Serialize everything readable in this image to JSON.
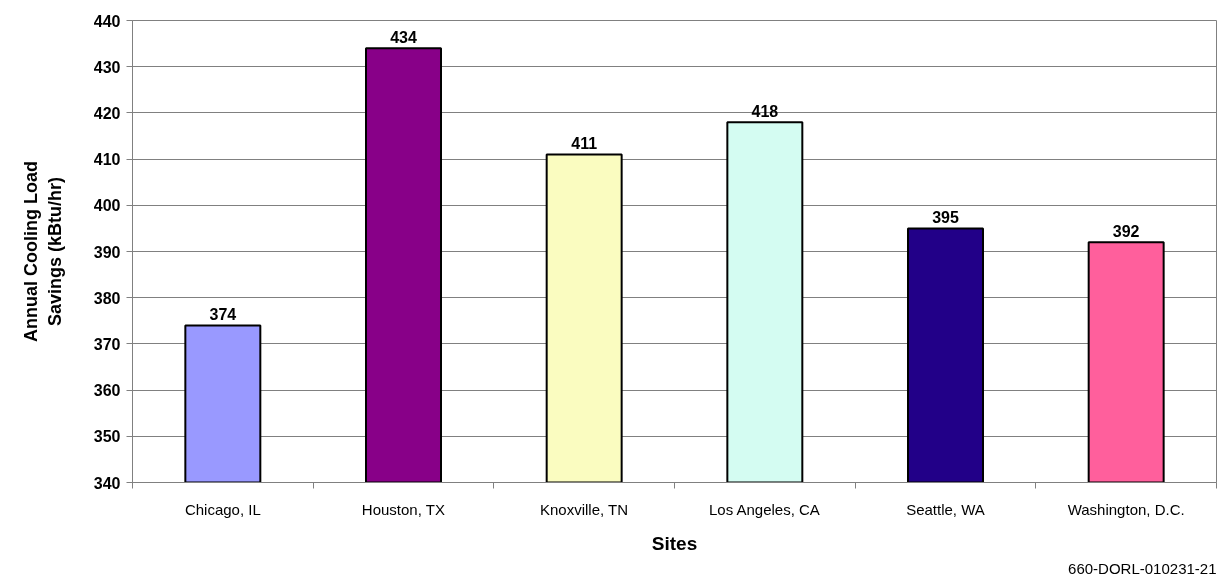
{
  "chart_data": {
    "type": "bar",
    "xlabel": "Sites",
    "ylabel": "Annual Cooling Load Savings (kBtu/hr)",
    "categories": [
      "Chicago, IL",
      "Houston, TX",
      "Knoxville, TN",
      "Los Angeles, CA",
      "Seattle, WA",
      "Washington, D.C."
    ],
    "values": [
      374,
      434,
      411,
      418,
      395,
      392
    ],
    "colors": [
      "#9999ff",
      "#880088",
      "#fafcc0",
      "#d4fcf2",
      "#220088",
      "#ff5f9c"
    ],
    "ylim": [
      340,
      440
    ],
    "yticks": [
      340,
      350,
      360,
      370,
      380,
      390,
      400,
      410,
      420,
      430,
      440
    ],
    "grid": "y",
    "data_labels": true,
    "annotations": [
      "660-DORL-010231-21"
    ]
  }
}
